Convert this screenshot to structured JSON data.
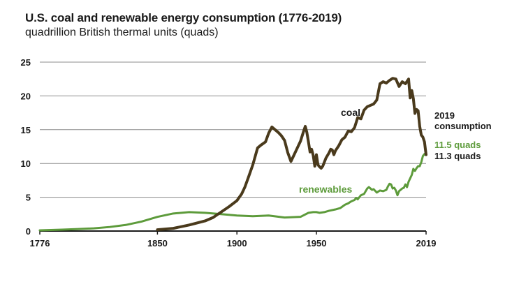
{
  "chart_data": {
    "type": "line",
    "title": "U.S. coal and renewable energy consumption (1776-2019)",
    "subtitle": "quadrillion British thermal units (quads)",
    "xlim": [
      1776,
      2019
    ],
    "ylim": [
      0,
      25
    ],
    "x_ticks": [
      "1776",
      "1850",
      "1900",
      "1950",
      "2019"
    ],
    "y_ticks": [
      "0",
      "5",
      "10",
      "15",
      "20",
      "25"
    ],
    "grid": "horizontal",
    "series": [
      {
        "name": "coal",
        "color": "#4a3a1c",
        "points": [
          [
            1850,
            0.2
          ],
          [
            1860,
            0.4
          ],
          [
            1870,
            0.9
          ],
          [
            1880,
            1.5
          ],
          [
            1885,
            2.0
          ],
          [
            1890,
            2.8
          ],
          [
            1895,
            3.6
          ],
          [
            1900,
            4.5
          ],
          [
            1903,
            5.5
          ],
          [
            1905,
            6.5
          ],
          [
            1907,
            7.8
          ],
          [
            1910,
            9.8
          ],
          [
            1913,
            12.3
          ],
          [
            1915,
            12.7
          ],
          [
            1918,
            13.2
          ],
          [
            1920,
            14.5
          ],
          [
            1922,
            15.4
          ],
          [
            1924,
            15.0
          ],
          [
            1926,
            14.6
          ],
          [
            1928,
            14.1
          ],
          [
            1930,
            13.4
          ],
          [
            1932,
            11.6
          ],
          [
            1934,
            10.3
          ],
          [
            1936,
            11.3
          ],
          [
            1938,
            12.3
          ],
          [
            1940,
            13.3
          ],
          [
            1942,
            14.8
          ],
          [
            1943,
            15.5
          ],
          [
            1944,
            14.6
          ],
          [
            1945,
            13.2
          ],
          [
            1946,
            11.7
          ],
          [
            1947,
            12.1
          ],
          [
            1948,
            11.2
          ],
          [
            1949,
            9.6
          ],
          [
            1950,
            11.3
          ],
          [
            1951,
            9.8
          ],
          [
            1952,
            9.5
          ],
          [
            1953,
            9.3
          ],
          [
            1954,
            9.6
          ],
          [
            1956,
            10.8
          ],
          [
            1958,
            11.6
          ],
          [
            1959,
            12.1
          ],
          [
            1960,
            12.0
          ],
          [
            1961,
            11.3
          ],
          [
            1962,
            11.9
          ],
          [
            1964,
            12.6
          ],
          [
            1966,
            13.5
          ],
          [
            1968,
            13.9
          ],
          [
            1970,
            14.8
          ],
          [
            1972,
            14.7
          ],
          [
            1974,
            15.3
          ],
          [
            1976,
            16.8
          ],
          [
            1978,
            16.6
          ],
          [
            1980,
            17.9
          ],
          [
            1982,
            18.4
          ],
          [
            1984,
            18.6
          ],
          [
            1986,
            18.8
          ],
          [
            1988,
            19.4
          ],
          [
            1990,
            21.8
          ],
          [
            1992,
            22.1
          ],
          [
            1994,
            21.9
          ],
          [
            1996,
            22.3
          ],
          [
            1998,
            22.6
          ],
          [
            2000,
            22.5
          ],
          [
            2002,
            21.4
          ],
          [
            2004,
            22.1
          ],
          [
            2006,
            21.8
          ],
          [
            2008,
            22.5
          ],
          [
            2009,
            19.7
          ],
          [
            2010,
            20.8
          ],
          [
            2011,
            19.6
          ],
          [
            2012,
            17.4
          ],
          [
            2013,
            18.0
          ],
          [
            2014,
            17.8
          ],
          [
            2015,
            15.5
          ],
          [
            2016,
            14.2
          ],
          [
            2017,
            13.9
          ],
          [
            2018,
            13.2
          ],
          [
            2019,
            11.3
          ]
        ]
      },
      {
        "name": "renewables",
        "color": "#5d9b3b",
        "points": [
          [
            1776,
            0.1
          ],
          [
            1790,
            0.2
          ],
          [
            1800,
            0.3
          ],
          [
            1810,
            0.4
          ],
          [
            1820,
            0.6
          ],
          [
            1830,
            0.9
          ],
          [
            1840,
            1.4
          ],
          [
            1850,
            2.1
          ],
          [
            1860,
            2.6
          ],
          [
            1870,
            2.8
          ],
          [
            1880,
            2.7
          ],
          [
            1890,
            2.5
          ],
          [
            1900,
            2.3
          ],
          [
            1910,
            2.2
          ],
          [
            1920,
            2.3
          ],
          [
            1930,
            2.0
          ],
          [
            1940,
            2.1
          ],
          [
            1945,
            2.7
          ],
          [
            1948,
            2.8
          ],
          [
            1950,
            2.8
          ],
          [
            1952,
            2.7
          ],
          [
            1955,
            2.8
          ],
          [
            1958,
            3.0
          ],
          [
            1962,
            3.2
          ],
          [
            1965,
            3.4
          ],
          [
            1968,
            3.9
          ],
          [
            1970,
            4.1
          ],
          [
            1972,
            4.4
          ],
          [
            1974,
            4.6
          ],
          [
            1975,
            4.9
          ],
          [
            1976,
            4.7
          ],
          [
            1978,
            5.3
          ],
          [
            1980,
            5.5
          ],
          [
            1982,
            6.3
          ],
          [
            1983,
            6.5
          ],
          [
            1985,
            6.1
          ],
          [
            1986,
            6.2
          ],
          [
            1988,
            5.7
          ],
          [
            1990,
            6.0
          ],
          [
            1992,
            5.9
          ],
          [
            1994,
            6.1
          ],
          [
            1995,
            6.6
          ],
          [
            1996,
            7.0
          ],
          [
            1997,
            6.9
          ],
          [
            1998,
            6.3
          ],
          [
            1999,
            6.4
          ],
          [
            2000,
            6.0
          ],
          [
            2001,
            5.3
          ],
          [
            2002,
            5.9
          ],
          [
            2003,
            6.1
          ],
          [
            2004,
            6.3
          ],
          [
            2005,
            6.4
          ],
          [
            2006,
            6.9
          ],
          [
            2007,
            6.5
          ],
          [
            2008,
            7.3
          ],
          [
            2009,
            7.8
          ],
          [
            2010,
            8.3
          ],
          [
            2011,
            9.2
          ],
          [
            2012,
            8.9
          ],
          [
            2013,
            9.3
          ],
          [
            2014,
            9.6
          ],
          [
            2015,
            9.6
          ],
          [
            2016,
            10.2
          ],
          [
            2017,
            11.1
          ],
          [
            2018,
            11.4
          ],
          [
            2019,
            11.5
          ]
        ]
      }
    ],
    "annotations": {
      "coal_label": "coal",
      "renewables_label": "renewables",
      "consumption_label_line1": "2019",
      "consumption_label_line2": "consumption",
      "renewables_value": "11.5 quads",
      "coal_value": "11.3 quads"
    }
  }
}
